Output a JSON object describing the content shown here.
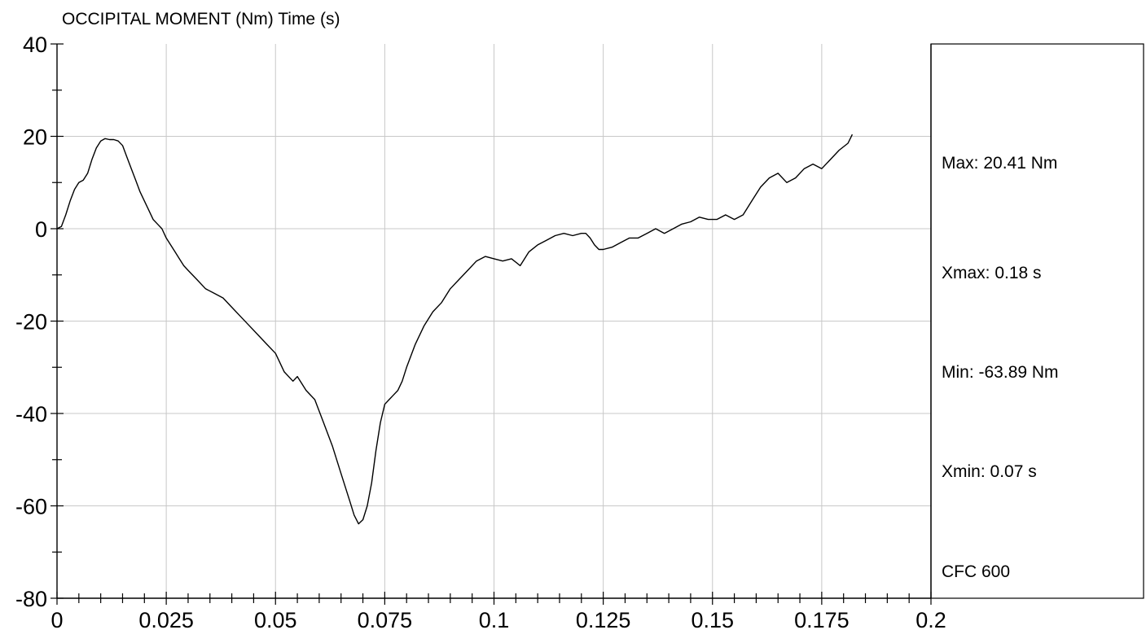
{
  "chart_data": {
    "type": "line",
    "title": "OCCIPITAL MOMENT (Nm) Time (s)",
    "xlabel": "",
    "ylabel": "",
    "xlim": [
      0,
      0.2
    ],
    "ylim": [
      -80,
      40
    ],
    "grid": true,
    "x_ticks": [
      0,
      0.025,
      0.05,
      0.075,
      0.1,
      0.125,
      0.15,
      0.175,
      0.2
    ],
    "x_tick_labels": [
      "0",
      "0.025",
      "0.05",
      "0.075",
      "0.1",
      "0.125",
      "0.15",
      "0.175",
      "0.2"
    ],
    "y_ticks": [
      40,
      20,
      0,
      -20,
      -40,
      -60,
      -80
    ],
    "y_tick_labels": [
      "40",
      "20",
      "0",
      "-20",
      "-40",
      "-60",
      "-80"
    ],
    "series": [
      {
        "color": "#000000",
        "x": [
          0,
          0.001,
          0.002,
          0.003,
          0.004,
          0.005,
          0.006,
          0.007,
          0.008,
          0.009,
          0.01,
          0.011,
          0.012,
          0.013,
          0.014,
          0.015,
          0.016,
          0.017,
          0.018,
          0.019,
          0.02,
          0.021,
          0.022,
          0.023,
          0.024,
          0.025,
          0.026,
          0.027,
          0.028,
          0.029,
          0.03,
          0.032,
          0.034,
          0.036,
          0.038,
          0.04,
          0.042,
          0.044,
          0.046,
          0.048,
          0.05,
          0.052,
          0.054,
          0.055,
          0.057,
          0.059,
          0.061,
          0.063,
          0.065,
          0.067,
          0.068,
          0.069,
          0.07,
          0.071,
          0.072,
          0.073,
          0.074,
          0.075,
          0.076,
          0.077,
          0.078,
          0.079,
          0.08,
          0.082,
          0.084,
          0.086,
          0.088,
          0.09,
          0.092,
          0.094,
          0.096,
          0.098,
          0.1,
          0.102,
          0.104,
          0.106,
          0.108,
          0.11,
          0.112,
          0.114,
          0.116,
          0.118,
          0.12,
          0.121,
          0.122,
          0.123,
          0.124,
          0.125,
          0.127,
          0.129,
          0.131,
          0.133,
          0.135,
          0.137,
          0.139,
          0.141,
          0.143,
          0.145,
          0.147,
          0.149,
          0.151,
          0.153,
          0.155,
          0.157,
          0.159,
          0.161,
          0.163,
          0.165,
          0.167,
          0.169,
          0.171,
          0.173,
          0.175,
          0.177,
          0.179,
          0.181,
          0.182
        ],
        "values": [
          0,
          0.5,
          3,
          6,
          8.5,
          10,
          10.5,
          12,
          15,
          17.5,
          19,
          19.5,
          19.3,
          19.3,
          19,
          18,
          15.5,
          13,
          10.5,
          8,
          6,
          4,
          2,
          1,
          0,
          -2,
          -3.5,
          -5,
          -6.5,
          -8,
          -9,
          -11,
          -13,
          -14,
          -15,
          -17,
          -19,
          -21,
          -23,
          -25,
          -27,
          -31,
          -33,
          -32,
          -35,
          -37,
          -42,
          -47,
          -53,
          -59,
          -62,
          -63.9,
          -63,
          -60,
          -55,
          -48,
          -42,
          -38,
          -37,
          -36,
          -35,
          -33,
          -30,
          -25,
          -21,
          -18,
          -16,
          -13,
          -11,
          -9,
          -7,
          -6,
          -6.5,
          -7,
          -6.5,
          -8,
          -5,
          -3.5,
          -2.5,
          -1.5,
          -1,
          -1.5,
          -1,
          -1,
          -2,
          -3.5,
          -4.5,
          -4.5,
          -4,
          -3,
          -2,
          -2,
          -1,
          0,
          -1,
          0,
          1,
          1.5,
          2.5,
          2,
          2,
          3,
          2,
          3,
          6,
          9,
          11,
          12,
          10,
          11,
          13,
          14,
          13,
          15,
          17,
          18.5,
          20.4
        ]
      }
    ]
  },
  "stats": {
    "max": "Max: 20.41 Nm",
    "xmax": "Xmax: 0.18 s",
    "min": "Min: -63.89 Nm",
    "xmin": "Xmin: 0.07 s",
    "filter": "CFC 600"
  }
}
